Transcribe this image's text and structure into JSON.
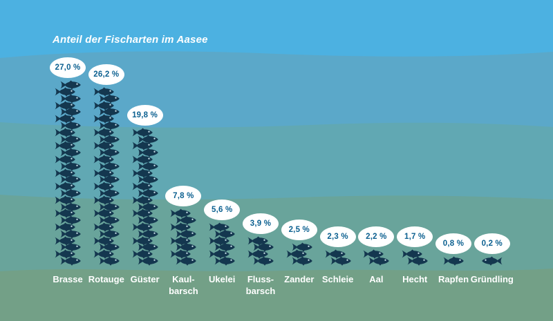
{
  "chart_data": {
    "type": "pictogram-bar",
    "title": "Anteil der Fischarten im Aasee",
    "unit": "%",
    "icon": "fish",
    "icon_unit_value": 1,
    "legend_position": "none",
    "axes_visible": false,
    "categories": [
      "Brasse",
      "Rotauge",
      "Güster",
      "Kaulbarsch",
      "Ukelei",
      "Flussbarsch",
      "Zander",
      "Schleie",
      "Aal",
      "Hecht",
      "Rapfen",
      "Gründling"
    ],
    "category_display": [
      "Brasse",
      "Rotauge",
      "Güster",
      "Kaul-\nbarsch",
      "Ukelei",
      "Fluss-\nbarsch",
      "Zander",
      "Schleie",
      "Aal",
      "Hecht",
      "Rapfen",
      "Gründling"
    ],
    "values": [
      27.0,
      26.2,
      19.8,
      7.8,
      5.6,
      3.9,
      2.5,
      2.3,
      2.2,
      1.7,
      0.8,
      0.2
    ],
    "value_labels": [
      "27,0 %",
      "26,2 %",
      "19,8 %",
      "7,8 %",
      "5,6 %",
      "3,9 %",
      "2,5 %",
      "2,3 %",
      "2,2 %",
      "1,7 %",
      "0,8 %",
      "0,2 %"
    ],
    "icon_counts": [
      27,
      26,
      20,
      8,
      6,
      4,
      3,
      2,
      2,
      2,
      1,
      1
    ],
    "icon_flip_horizontal": [
      false,
      false,
      false,
      false,
      false,
      false,
      false,
      false,
      false,
      false,
      false,
      true
    ]
  },
  "colors": {
    "water_band_1": "#4CB1E1",
    "water_band_2": "#5BA8C9",
    "water_band_3": "#61A8B3",
    "water_band_4": "#69A49B",
    "water_band_5": "#73A087",
    "fish": "#14374F",
    "fish_eye": "#CFE6EF",
    "bubble_background": "#FFFFFF",
    "bubble_text": "#0C6090",
    "title_text": "#FFFFFF",
    "label_text": "#FFFFFF"
  }
}
